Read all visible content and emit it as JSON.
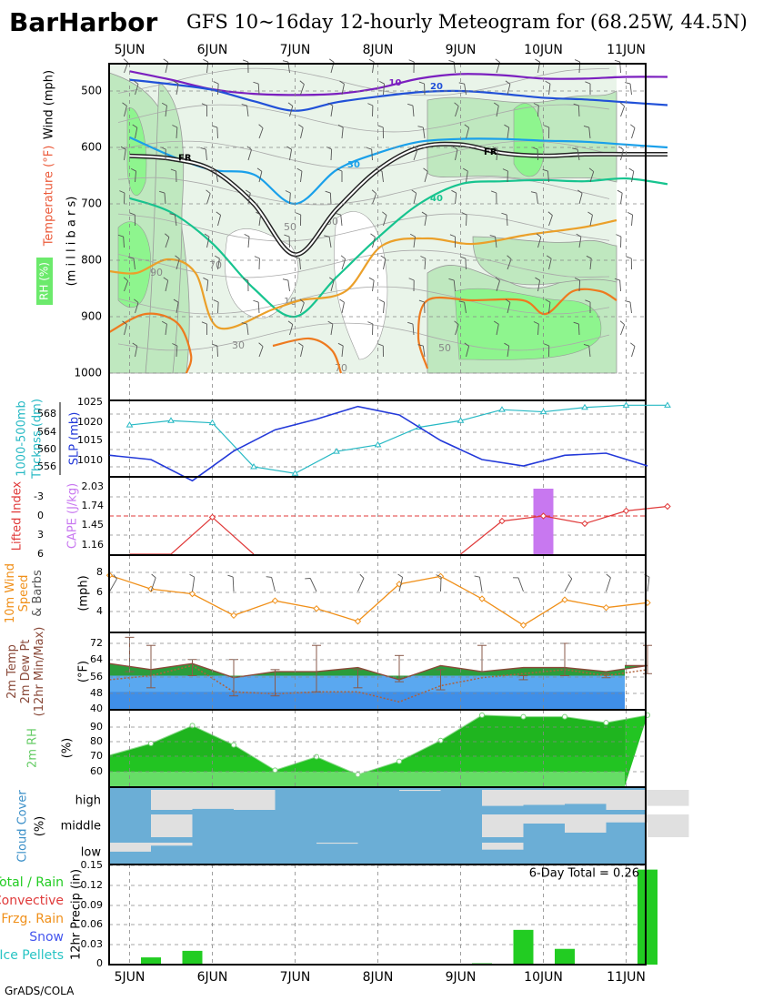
{
  "header": {
    "station": "BarHarbor",
    "title": "GFS 10~16day 12-hourly Meteogram for (68.25W, 44.5N)"
  },
  "footer": "GrADS/COLA",
  "colors": {
    "thickness": "#27b9c4",
    "slp": "#2339d9",
    "lifted": "#e03a3a",
    "cape": "#c878f0",
    "wind10m": "#f0901a",
    "temp2m": "#2e8b2e",
    "dewpt2m": "#2a7fe0",
    "rh2m": "#22c422",
    "cloud": "#6baed6",
    "precip": "#22cc22"
  },
  "chart_data": [
    {
      "type": "line",
      "panel": "upper-air",
      "labels": {
        "wind": "Wind (mph)",
        "temp": "Temperature (°F)",
        "rh": "RH (%)",
        "p": "(m i l l i b a r s)"
      },
      "x_ticks": [
        "5JUN",
        "6JUN",
        "7JUN",
        "8JUN",
        "9JUN",
        "10JUN",
        "11JUN"
      ],
      "y_ticks": [
        "500",
        "600",
        "700",
        "800",
        "900",
        "1000"
      ],
      "ylim": [
        1000,
        450
      ],
      "isotherms": [
        {
          "label": "10",
          "color": "#7b1fbf",
          "p": [
            465,
            480,
            497,
            505,
            507,
            505,
            495,
            478,
            470,
            472,
            478,
            478,
            475,
            475
          ]
        },
        {
          "label": "20",
          "color": "#2151d8",
          "p": [
            480,
            488,
            498,
            518,
            535,
            520,
            510,
            502,
            500,
            505,
            512,
            515,
            520,
            525
          ]
        },
        {
          "label": "30",
          "color": "#1aa0ea",
          "p": [
            582,
            615,
            640,
            648,
            700,
            640,
            610,
            590,
            585,
            585,
            588,
            590,
            595,
            600
          ]
        },
        {
          "label": "40",
          "color": "#17c48f",
          "p": [
            690,
            715,
            770,
            850,
            900,
            830,
            760,
            700,
            665,
            660,
            658,
            660,
            655,
            665
          ]
        },
        {
          "label": "FR",
          "color": "#222222",
          "p": [
            615,
            620,
            640,
            700,
            790,
            710,
            640,
            600,
            595,
            610,
            615,
            612,
            612,
            612
          ]
        }
      ],
      "thin_contours": [
        "90",
        "70",
        "50",
        "30",
        "10",
        "30",
        "50",
        "70",
        "50",
        "90"
      ]
    },
    {
      "type": "line",
      "panel": "thickness-slp",
      "ylabel_left": "1000-500mb Thcknss (dm)",
      "ylabel_right": "SLP (mb)",
      "left_ticks": [
        "568",
        "564",
        "560",
        "556"
      ],
      "right_ticks": [
        "1025",
        "1020",
        "1015",
        "1010"
      ],
      "series": [
        {
          "name": "1000-500mb Thcknss (dm)",
          "axis": "left",
          "values": [
            565.5,
            566.5,
            566.0,
            556.0,
            554.5,
            559.5,
            561.0,
            565.0,
            566.5,
            569.0,
            568.5,
            569.5,
            570.0,
            570.0
          ]
        },
        {
          "name": "SLP (mb)",
          "axis": "right",
          "values": [
            1012.5,
            1011.5,
            1006.5,
            1013.5,
            1018.5,
            1021.0,
            1024.0,
            1022.0,
            1016.0,
            1011.5,
            1010.0,
            1012.5,
            1013.0,
            1010.0
          ]
        }
      ]
    },
    {
      "type": "line",
      "panel": "lifted-cape",
      "ylabel_left": "Lifted Index",
      "ylabel_right": "CAPE (J/kg)",
      "left_ticks": [
        "-3",
        "0",
        "3",
        "6"
      ],
      "right_ticks": [
        "2.03",
        "1.74",
        "1.45",
        "1.16"
      ],
      "series": [
        {
          "name": "Lifted Index",
          "values": [
            6,
            6,
            0.2,
            6,
            null,
            null,
            null,
            null,
            6,
            0.8,
            0,
            1.2,
            -0.8,
            -1.5
          ]
        },
        {
          "name": "CAPE (J/kg)",
          "values": [
            0,
            0,
            0,
            0,
            0,
            0,
            0,
            0,
            0,
            0,
            2.03,
            0,
            0,
            0
          ]
        }
      ]
    },
    {
      "type": "line",
      "panel": "wind10m",
      "ylabel_left": "10m Wind Speed & Barbs",
      "ylabel_right": "(mph)",
      "left_ticks": [
        "8",
        "6",
        "4"
      ],
      "series": [
        {
          "name": "10m Wind Speed",
          "values": [
            7.7,
            6.3,
            5.8,
            3.6,
            5.1,
            4.3,
            3.0,
            6.8,
            7.6,
            5.3,
            2.6,
            5.2,
            4.4,
            4.9
          ]
        }
      ]
    },
    {
      "type": "area",
      "panel": "temp-dewpt",
      "ylabel_left": "2m Temp 2m Dew Pt (12hr Min/Max)",
      "ylabel_right": "(°F)",
      "left_ticks": [
        "72",
        "64",
        "56",
        "48",
        "40"
      ],
      "series": [
        {
          "name": "2m Temp",
          "values": [
            62,
            59,
            62,
            55,
            58,
            58,
            60,
            54,
            61,
            58,
            60,
            60,
            58,
            61
          ]
        },
        {
          "name": "2m Dew Pt",
          "values": [
            54,
            56,
            61,
            48,
            47,
            48,
            48,
            43,
            51,
            55,
            57,
            59,
            56,
            59
          ]
        },
        {
          "name": "12hr Max",
          "values": [
            75,
            71,
            64,
            64,
            59,
            71,
            59,
            66,
            59,
            71,
            56,
            72,
            57,
            71
          ]
        },
        {
          "name": "12hr Min",
          "values": [
            58,
            50,
            56,
            46,
            46,
            48,
            50,
            53,
            49,
            58,
            54,
            56,
            55,
            57
          ]
        }
      ]
    },
    {
      "type": "area",
      "panel": "rh2m",
      "ylabel_left": "2m RH",
      "ylabel_right": "(%)",
      "left_ticks": [
        "90",
        "80",
        "70",
        "60"
      ],
      "series": [
        {
          "name": "2m RH",
          "values": [
            71,
            79,
            91,
            78,
            61,
            70,
            58,
            67,
            81,
            98,
            97,
            97,
            93,
            98
          ]
        }
      ]
    },
    {
      "type": "area",
      "panel": "cloud-cover",
      "ylabel_left": "Cloud Cover (%)",
      "levels": [
        "high",
        "middle",
        "low"
      ],
      "series": [
        {
          "name": "high",
          "values": [
            100,
            0,
            5,
            0,
            100,
            100,
            100,
            95,
            100,
            20,
            25,
            30,
            0,
            20
          ]
        },
        {
          "name": "middle",
          "values": [
            100,
            0,
            100,
            100,
            100,
            100,
            100,
            100,
            100,
            0,
            60,
            20,
            65,
            0
          ]
        },
        {
          "name": "low",
          "values": [
            55,
            85,
            100,
            100,
            100,
            95,
            100,
            100,
            100,
            65,
            100,
            100,
            100,
            100
          ]
        }
      ]
    },
    {
      "type": "bar",
      "panel": "precip",
      "ylabel_left": "12hr Precip (in)",
      "legend": [
        "Total / Rain",
        "Convective",
        "Frzg. Rain",
        "Snow",
        "Ice Pellets"
      ],
      "total_label": "6-Day Total = 0.26",
      "left_ticks": [
        "0.15",
        "0.12",
        "0.09",
        "0.06",
        "0.03",
        "0"
      ],
      "ylim": [
        0,
        0.15
      ],
      "values": [
        0,
        0.011,
        0.021,
        0,
        0,
        0,
        0,
        0,
        0,
        0.002,
        0.053,
        0.024,
        0.001,
        0.145
      ]
    }
  ]
}
